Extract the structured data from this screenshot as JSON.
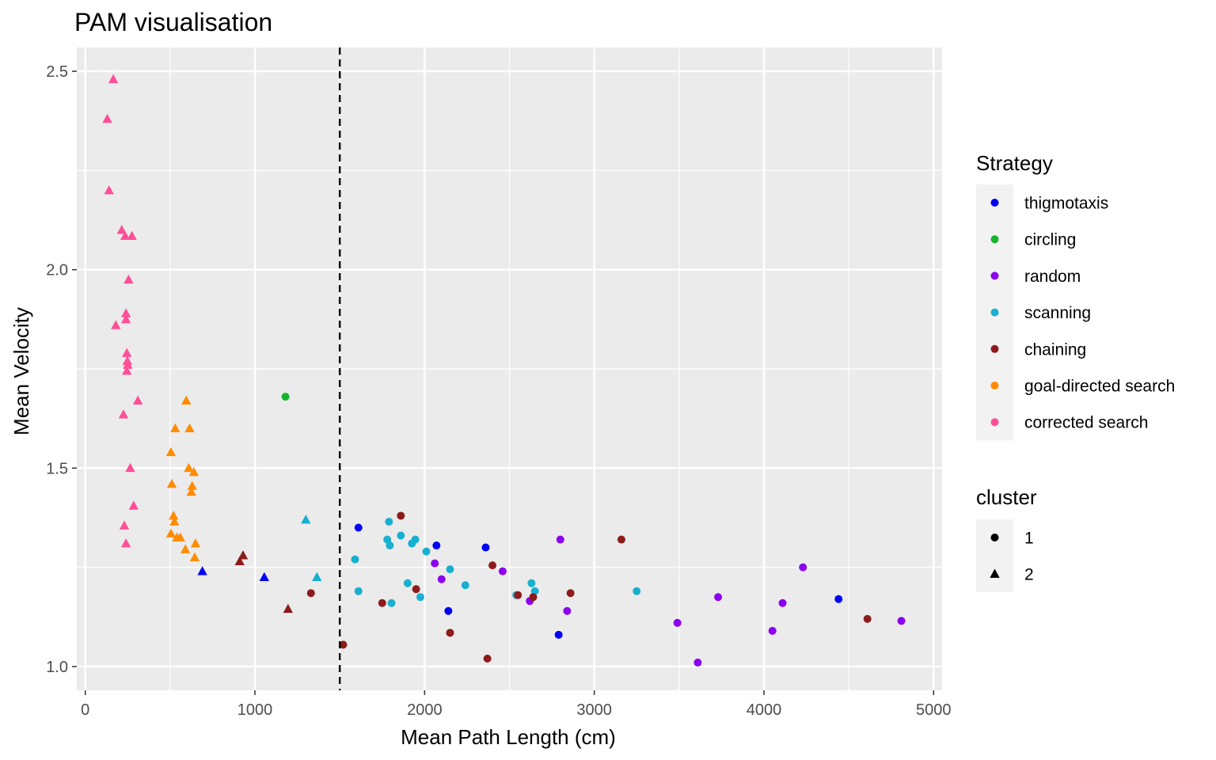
{
  "chart_data": {
    "type": "scatter",
    "title": "PAM visualisation",
    "xlabel": "Mean Path Length (cm)",
    "ylabel": "Mean Velocity",
    "xlim": [
      -50,
      5050
    ],
    "ylim": [
      0.94,
      2.56
    ],
    "xticks": [
      0,
      1000,
      2000,
      3000,
      4000,
      5000
    ],
    "xtick_labels": [
      "0",
      "1000",
      "2000",
      "3000",
      "4000",
      "5000"
    ],
    "yticks": [
      1.0,
      1.5,
      2.0,
      2.5
    ],
    "ytick_labels": [
      "1.0",
      "1.5",
      "2.0",
      "2.5"
    ],
    "grid": true,
    "vline": {
      "x": 1500,
      "style": "dashed",
      "color": "#000000"
    },
    "legend_strategy": {
      "title": "Strategy",
      "placement": "right",
      "entries": [
        {
          "label": "thigmotaxis",
          "color": "#0000f5"
        },
        {
          "label": "circling",
          "color": "#16b52c"
        },
        {
          "label": "random",
          "color": "#8b00f0"
        },
        {
          "label": "scanning",
          "color": "#19afcf"
        },
        {
          "label": "chaining",
          "color": "#8e1b1b"
        },
        {
          "label": "goal-directed search",
          "color": "#ff8c00"
        },
        {
          "label": "corrected search",
          "color": "#ff4f96"
        }
      ]
    },
    "legend_cluster": {
      "title": "cluster",
      "placement": "right",
      "entries": [
        {
          "label": "1",
          "shape": "circle"
        },
        {
          "label": "2",
          "shape": "triangle"
        }
      ]
    },
    "series": [
      {
        "name": "thigmotaxis",
        "color": "#0000f5",
        "points": [
          {
            "x": 1610,
            "y": 1.35,
            "cluster": 1
          },
          {
            "x": 2070,
            "y": 1.305,
            "cluster": 1
          },
          {
            "x": 2360,
            "y": 1.3,
            "cluster": 1
          },
          {
            "x": 2140,
            "y": 1.14,
            "cluster": 1
          },
          {
            "x": 2790,
            "y": 1.08,
            "cluster": 1
          },
          {
            "x": 4440,
            "y": 1.17,
            "cluster": 1
          },
          {
            "x": 690,
            "y": 1.24,
            "cluster": 2
          },
          {
            "x": 1055,
            "y": 1.225,
            "cluster": 2
          }
        ]
      },
      {
        "name": "circling",
        "color": "#16b52c",
        "points": [
          {
            "x": 1180,
            "y": 1.68,
            "cluster": 1
          }
        ]
      },
      {
        "name": "random",
        "color": "#8b00f0",
        "points": [
          {
            "x": 2060,
            "y": 1.26,
            "cluster": 1
          },
          {
            "x": 2100,
            "y": 1.22,
            "cluster": 1
          },
          {
            "x": 2460,
            "y": 1.24,
            "cluster": 1
          },
          {
            "x": 2620,
            "y": 1.165,
            "cluster": 1
          },
          {
            "x": 2800,
            "y": 1.32,
            "cluster": 1
          },
          {
            "x": 2840,
            "y": 1.14,
            "cluster": 1
          },
          {
            "x": 3490,
            "y": 1.11,
            "cluster": 1
          },
          {
            "x": 3610,
            "y": 1.01,
            "cluster": 1
          },
          {
            "x": 3730,
            "y": 1.175,
            "cluster": 1
          },
          {
            "x": 4050,
            "y": 1.09,
            "cluster": 1
          },
          {
            "x": 4110,
            "y": 1.16,
            "cluster": 1
          },
          {
            "x": 4230,
            "y": 1.25,
            "cluster": 1
          },
          {
            "x": 4810,
            "y": 1.115,
            "cluster": 1
          }
        ]
      },
      {
        "name": "scanning",
        "color": "#19afcf",
        "points": [
          {
            "x": 1590,
            "y": 1.27,
            "cluster": 1
          },
          {
            "x": 1610,
            "y": 1.19,
            "cluster": 1
          },
          {
            "x": 1780,
            "y": 1.32,
            "cluster": 1
          },
          {
            "x": 1790,
            "y": 1.365,
            "cluster": 1
          },
          {
            "x": 1795,
            "y": 1.305,
            "cluster": 1
          },
          {
            "x": 1805,
            "y": 1.16,
            "cluster": 1
          },
          {
            "x": 1860,
            "y": 1.33,
            "cluster": 1
          },
          {
            "x": 1900,
            "y": 1.21,
            "cluster": 1
          },
          {
            "x": 1925,
            "y": 1.31,
            "cluster": 1
          },
          {
            "x": 1945,
            "y": 1.32,
            "cluster": 1
          },
          {
            "x": 1975,
            "y": 1.175,
            "cluster": 1
          },
          {
            "x": 2010,
            "y": 1.29,
            "cluster": 1
          },
          {
            "x": 2150,
            "y": 1.245,
            "cluster": 1
          },
          {
            "x": 2240,
            "y": 1.205,
            "cluster": 1
          },
          {
            "x": 2540,
            "y": 1.18,
            "cluster": 1
          },
          {
            "x": 2630,
            "y": 1.21,
            "cluster": 1
          },
          {
            "x": 2650,
            "y": 1.19,
            "cluster": 1
          },
          {
            "x": 3250,
            "y": 1.19,
            "cluster": 1
          },
          {
            "x": 1300,
            "y": 1.37,
            "cluster": 2
          },
          {
            "x": 1365,
            "y": 1.225,
            "cluster": 2
          }
        ]
      },
      {
        "name": "chaining",
        "color": "#8e1b1b",
        "points": [
          {
            "x": 1330,
            "y": 1.185,
            "cluster": 1
          },
          {
            "x": 1520,
            "y": 1.055,
            "cluster": 1
          },
          {
            "x": 1750,
            "y": 1.16,
            "cluster": 1
          },
          {
            "x": 1860,
            "y": 1.38,
            "cluster": 1
          },
          {
            "x": 1950,
            "y": 1.195,
            "cluster": 1
          },
          {
            "x": 2150,
            "y": 1.085,
            "cluster": 1
          },
          {
            "x": 2370,
            "y": 1.02,
            "cluster": 1
          },
          {
            "x": 2400,
            "y": 1.255,
            "cluster": 1
          },
          {
            "x": 2550,
            "y": 1.18,
            "cluster": 1
          },
          {
            "x": 2640,
            "y": 1.175,
            "cluster": 1
          },
          {
            "x": 2860,
            "y": 1.185,
            "cluster": 1
          },
          {
            "x": 3160,
            "y": 1.32,
            "cluster": 1
          },
          {
            "x": 4610,
            "y": 1.12,
            "cluster": 1
          },
          {
            "x": 910,
            "y": 1.265,
            "cluster": 2
          },
          {
            "x": 930,
            "y": 1.28,
            "cluster": 2
          },
          {
            "x": 1195,
            "y": 1.145,
            "cluster": 2
          }
        ]
      },
      {
        "name": "goal-directed search",
        "color": "#ff8c00",
        "points": [
          {
            "x": 505,
            "y": 1.335,
            "cluster": 2
          },
          {
            "x": 505,
            "y": 1.54,
            "cluster": 2
          },
          {
            "x": 510,
            "y": 1.46,
            "cluster": 2
          },
          {
            "x": 520,
            "y": 1.38,
            "cluster": 2
          },
          {
            "x": 525,
            "y": 1.365,
            "cluster": 2
          },
          {
            "x": 530,
            "y": 1.6,
            "cluster": 2
          },
          {
            "x": 540,
            "y": 1.325,
            "cluster": 2
          },
          {
            "x": 560,
            "y": 1.325,
            "cluster": 2
          },
          {
            "x": 590,
            "y": 1.295,
            "cluster": 2
          },
          {
            "x": 595,
            "y": 1.67,
            "cluster": 2
          },
          {
            "x": 610,
            "y": 1.5,
            "cluster": 2
          },
          {
            "x": 615,
            "y": 1.6,
            "cluster": 2
          },
          {
            "x": 625,
            "y": 1.44,
            "cluster": 2
          },
          {
            "x": 630,
            "y": 1.455,
            "cluster": 2
          },
          {
            "x": 640,
            "y": 1.49,
            "cluster": 2
          },
          {
            "x": 645,
            "y": 1.275,
            "cluster": 2
          },
          {
            "x": 650,
            "y": 1.31,
            "cluster": 2
          }
        ]
      },
      {
        "name": "corrected search",
        "color": "#ff4f96",
        "points": [
          {
            "x": 130,
            "y": 2.38,
            "cluster": 2
          },
          {
            "x": 140,
            "y": 2.2,
            "cluster": 2
          },
          {
            "x": 165,
            "y": 2.48,
            "cluster": 2
          },
          {
            "x": 180,
            "y": 1.86,
            "cluster": 2
          },
          {
            "x": 215,
            "y": 2.1,
            "cluster": 2
          },
          {
            "x": 225,
            "y": 1.635,
            "cluster": 2
          },
          {
            "x": 230,
            "y": 1.355,
            "cluster": 2
          },
          {
            "x": 235,
            "y": 2.085,
            "cluster": 2
          },
          {
            "x": 240,
            "y": 1.89,
            "cluster": 2
          },
          {
            "x": 240,
            "y": 1.875,
            "cluster": 2
          },
          {
            "x": 240,
            "y": 1.31,
            "cluster": 2
          },
          {
            "x": 245,
            "y": 1.79,
            "cluster": 2
          },
          {
            "x": 248,
            "y": 1.77,
            "cluster": 2
          },
          {
            "x": 250,
            "y": 1.76,
            "cluster": 2
          },
          {
            "x": 245,
            "y": 1.745,
            "cluster": 2
          },
          {
            "x": 255,
            "y": 1.975,
            "cluster": 2
          },
          {
            "x": 265,
            "y": 1.5,
            "cluster": 2
          },
          {
            "x": 275,
            "y": 2.085,
            "cluster": 2
          },
          {
            "x": 285,
            "y": 1.405,
            "cluster": 2
          },
          {
            "x": 310,
            "y": 1.67,
            "cluster": 2
          }
        ]
      }
    ]
  }
}
